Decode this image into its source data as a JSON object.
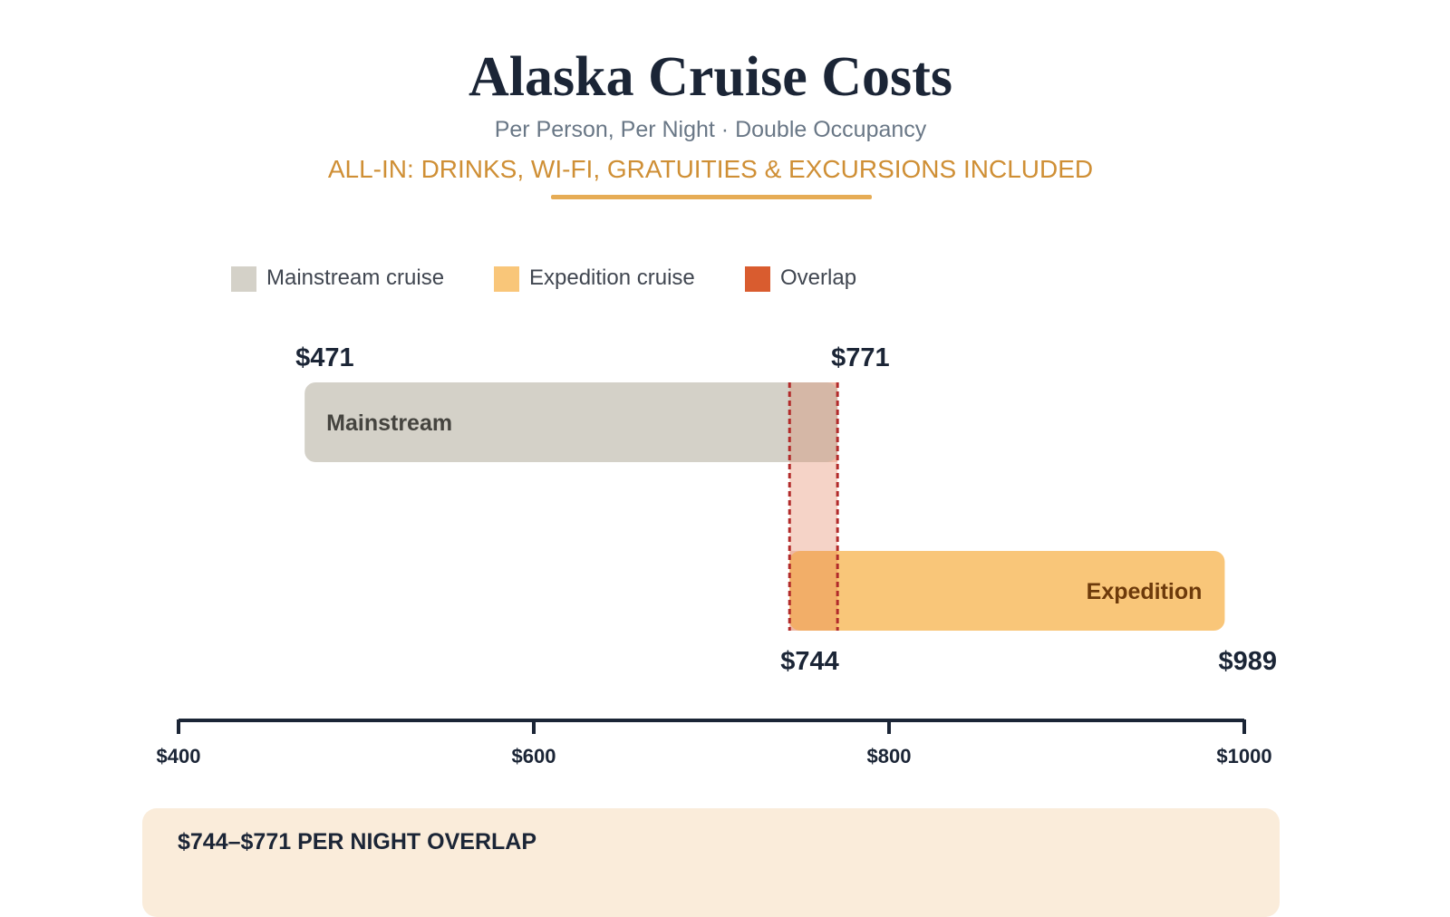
{
  "header": {
    "title": "Alaska Cruise Costs",
    "subtitle": "Per Person, Per Night · Double Occupancy",
    "tagline": "ALL-IN: DRINKS, WI-FI, GRATUITIES & EXCURSIONS INCLUDED"
  },
  "legend": [
    {
      "label": "Mainstream cruise",
      "color": "#d4d1c8"
    },
    {
      "label": "Expedition cruise",
      "color": "#f9c679"
    },
    {
      "label": "Overlap",
      "color": "#d95c2f"
    }
  ],
  "chart_data": {
    "type": "range-bar",
    "x_axis": {
      "min": 400,
      "max": 1000,
      "ticks": [
        400,
        600,
        800,
        1000
      ],
      "tick_labels": [
        "$400",
        "$600",
        "$800",
        "$1000"
      ]
    },
    "series": [
      {
        "name": "Mainstream",
        "low": 471,
        "high": 771,
        "low_label": "$471",
        "high_label": "$771",
        "color": "#d4d1c8",
        "text_color": "#45443f"
      },
      {
        "name": "Expedition",
        "low": 744,
        "high": 989,
        "low_label": "$744",
        "high_label": "$989",
        "color": "#f9c679",
        "text_color": "#6d3a0b"
      }
    ],
    "overlap": {
      "low": 744,
      "high": 771,
      "color": "#d95c2f",
      "line_color": "#b22a2a"
    }
  },
  "callout": {
    "text": "$744–$771 PER NIGHT OVERLAP"
  }
}
